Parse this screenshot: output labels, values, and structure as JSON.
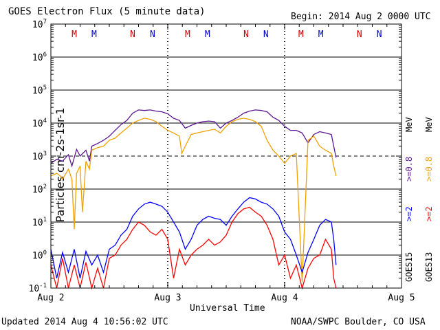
{
  "title": "GOES Electron Flux (5 minute data)",
  "begin": "Begin: 2014 Aug 2 0000 UTC",
  "footer_left": "Updated 2014 Aug  4 10:56:02 UTC",
  "footer_right": "NOAA/SWPC Boulder, CO USA",
  "colors": {
    "goes15_ge08": "#5a1590",
    "goes13_ge08": "#f0a000",
    "goes15_ge2": "#0000ff",
    "goes13_ge2": "#ff0000",
    "m_marker": "#cc0000",
    "n_marker": "#0000cc"
  },
  "right_labels": {
    "goes13": "GOES13",
    "goes15": "GOES15",
    "ge2_goes15": ">=2",
    "ge2_goes13": ">=2",
    "ge08_goes15": ">=0.8",
    "ge08_goes13": ">=0.8",
    "mev": "MeV"
  },
  "chart_data": {
    "type": "line",
    "title": "GOES Electron Flux (5 minute data)",
    "xlabel": "Universal Time",
    "ylabel": "Particles cm-2s-1sr-1",
    "yscale": "log",
    "ylim": [
      0.1,
      10000000
    ],
    "xlim": [
      "Aug 2",
      "Aug 5"
    ],
    "x_tick_labels": [
      "Aug 2",
      "Aug 3",
      "Aug 4",
      "Aug 5"
    ],
    "y_ticks": [
      {
        "base": "10",
        "exp": "-1"
      },
      {
        "base": "10",
        "exp": "0"
      },
      {
        "base": "10",
        "exp": "1"
      },
      {
        "base": "10",
        "exp": "2"
      },
      {
        "base": "10",
        "exp": "3"
      },
      {
        "base": "10",
        "exp": "4"
      },
      {
        "base": "10",
        "exp": "5"
      },
      {
        "base": "10",
        "exp": "6"
      },
      {
        "base": "10",
        "exp": "7"
      }
    ],
    "threshold_line": 1000,
    "grid": true,
    "markers": [
      {
        "label": "M",
        "day": 0.2
      },
      {
        "label": "M",
        "day": 0.37
      },
      {
        "label": "N",
        "day": 0.7
      },
      {
        "label": "N",
        "day": 0.87
      },
      {
        "label": "M",
        "day": 1.17
      },
      {
        "label": "M",
        "day": 1.34
      },
      {
        "label": "N",
        "day": 1.67
      },
      {
        "label": "N",
        "day": 1.84
      },
      {
        "label": "M",
        "day": 2.14
      },
      {
        "label": "M",
        "day": 2.31
      },
      {
        "label": "N",
        "day": 2.64
      },
      {
        "label": "N",
        "day": 2.81
      }
    ],
    "series": [
      {
        "name": "GOES15 >=0.8 MeV",
        "color": "#5a1590",
        "x": [
          0,
          0.05,
          0.1,
          0.15,
          0.18,
          0.22,
          0.25,
          0.3,
          0.33,
          0.35,
          0.4,
          0.45,
          0.5,
          0.55,
          0.6,
          0.65,
          0.7,
          0.75,
          0.8,
          0.85,
          0.9,
          0.95,
          1.0,
          1.05,
          1.1,
          1.15,
          1.2,
          1.25,
          1.3,
          1.35,
          1.4,
          1.45,
          1.5,
          1.55,
          1.6,
          1.65,
          1.7,
          1.75,
          1.8,
          1.85,
          1.9,
          1.95,
          2.0,
          2.05,
          2.1,
          2.15,
          2.2,
          2.25,
          2.3,
          2.35,
          2.4,
          2.42,
          2.44
        ],
        "y": [
          600,
          800,
          700,
          1100,
          500,
          1600,
          1000,
          1500,
          700,
          2000,
          2400,
          3000,
          4000,
          6000,
          9000,
          12000,
          20000,
          25000,
          24000,
          25000,
          23000,
          22000,
          19000,
          14000,
          12000,
          7000,
          8500,
          10000,
          11000,
          11500,
          11000,
          7000,
          10000,
          12000,
          15000,
          20000,
          23000,
          25000,
          24000,
          22000,
          15000,
          12000,
          8000,
          6000,
          6000,
          5000,
          2500,
          4500,
          5500,
          5000,
          4500,
          2000,
          900
        ]
      },
      {
        "name": "GOES13 >=0.8 MeV",
        "color": "#f0a000",
        "x": [
          0,
          0.05,
          0.08,
          0.1,
          0.15,
          0.18,
          0.2,
          0.22,
          0.25,
          0.27,
          0.3,
          0.33,
          0.35,
          0.4,
          0.45,
          0.5,
          0.55,
          0.6,
          0.65,
          0.7,
          0.75,
          0.8,
          0.85,
          0.9,
          0.95,
          1.0,
          1.05,
          1.1,
          1.12,
          1.15,
          1.2,
          1.25,
          1.3,
          1.35,
          1.4,
          1.45,
          1.5,
          1.55,
          1.6,
          1.65,
          1.7,
          1.75,
          1.8,
          1.85,
          1.9,
          1.95,
          2.0,
          2.05,
          2.1,
          2.15,
          2.2,
          2.25,
          2.3,
          2.35,
          2.4,
          2.42,
          2.44
        ],
        "y": [
          250,
          300,
          250,
          200,
          400,
          200,
          6,
          300,
          500,
          20,
          700,
          400,
          1500,
          1800,
          2000,
          3000,
          3500,
          5000,
          7000,
          10000,
          12000,
          14000,
          13000,
          11000,
          8000,
          6000,
          5000,
          4000,
          1200,
          2000,
          4500,
          5000,
          5500,
          6000,
          6500,
          5000,
          8000,
          11000,
          13000,
          14000,
          13000,
          11000,
          8000,
          3000,
          1500,
          1000,
          600,
          1000,
          1200,
          0.15,
          3000,
          4000,
          2000,
          1500,
          1200,
          500,
          250
        ]
      },
      {
        "name": "GOES15 >=2 MeV",
        "color": "#0000ff",
        "x": [
          0,
          0.05,
          0.1,
          0.15,
          0.2,
          0.25,
          0.3,
          0.35,
          0.4,
          0.45,
          0.5,
          0.55,
          0.6,
          0.65,
          0.7,
          0.75,
          0.8,
          0.85,
          0.9,
          0.95,
          1.0,
          1.05,
          1.1,
          1.15,
          1.2,
          1.25,
          1.3,
          1.35,
          1.4,
          1.45,
          1.5,
          1.55,
          1.6,
          1.65,
          1.7,
          1.75,
          1.8,
          1.85,
          1.9,
          1.95,
          2.0,
          2.05,
          2.1,
          2.15,
          2.2,
          2.25,
          2.3,
          2.35,
          2.4,
          2.42,
          2.44
        ],
        "y": [
          1.5,
          0.2,
          1.2,
          0.3,
          1.5,
          0.2,
          1.3,
          0.5,
          1.0,
          0.3,
          1.5,
          2.0,
          4.0,
          6.0,
          15.0,
          25.0,
          35.0,
          40.0,
          35.0,
          30.0,
          20.0,
          10.0,
          5.0,
          1.5,
          3.0,
          8.0,
          12.0,
          15.0,
          13.0,
          12.0,
          8.0,
          15.0,
          25.0,
          40.0,
          55.0,
          50.0,
          40.0,
          35.0,
          25.0,
          15.0,
          5.0,
          3.0,
          1.0,
          0.3,
          1.2,
          3.0,
          8.0,
          12.0,
          10.0,
          3.0,
          0.5
        ]
      },
      {
        "name": "GOES13 >=2 MeV",
        "color": "#ff0000",
        "x": [
          0,
          0.05,
          0.1,
          0.15,
          0.2,
          0.25,
          0.3,
          0.35,
          0.4,
          0.45,
          0.5,
          0.55,
          0.6,
          0.65,
          0.7,
          0.75,
          0.8,
          0.85,
          0.9,
          0.95,
          1.0,
          1.05,
          1.1,
          1.15,
          1.2,
          1.25,
          1.3,
          1.35,
          1.4,
          1.45,
          1.5,
          1.55,
          1.6,
          1.65,
          1.7,
          1.75,
          1.8,
          1.85,
          1.9,
          1.95,
          2.0,
          2.05,
          2.1,
          2.15,
          2.2,
          2.25,
          2.3,
          2.35,
          2.4,
          2.42,
          2.44
        ],
        "y": [
          0.5,
          0.1,
          0.8,
          0.1,
          0.5,
          0.1,
          0.6,
          0.1,
          0.4,
          0.1,
          0.8,
          1.0,
          2.0,
          3.0,
          6.0,
          10.0,
          8.0,
          5.0,
          4.0,
          6.0,
          3.0,
          0.2,
          1.5,
          0.5,
          1.0,
          1.5,
          2.0,
          3.0,
          2.0,
          2.5,
          4.0,
          10.0,
          18.0,
          25.0,
          28.0,
          20.0,
          15.0,
          8.0,
          3.0,
          0.5,
          1.0,
          0.2,
          0.5,
          0.1,
          0.4,
          0.8,
          1.0,
          3.0,
          1.5,
          0.2,
          0.1
        ]
      }
    ]
  }
}
